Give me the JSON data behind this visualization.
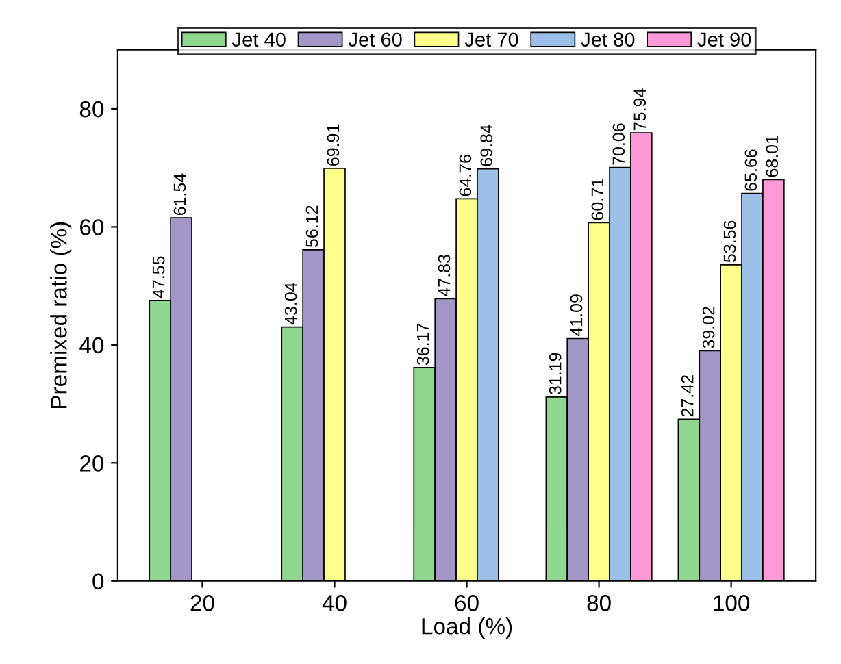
{
  "chart_data": {
    "type": "bar",
    "xlabel": "Load (%)",
    "ylabel": "Premixed ratio (%)",
    "categories": [
      "20",
      "40",
      "60",
      "80",
      "100"
    ],
    "series": [
      {
        "name": "Jet 40",
        "color": "#90d890",
        "values": [
          47.55,
          43.04,
          36.17,
          31.19,
          27.42
        ]
      },
      {
        "name": "Jet 60",
        "color": "#a397c8",
        "values": [
          61.54,
          56.12,
          47.83,
          41.09,
          39.02
        ]
      },
      {
        "name": "Jet 70",
        "color": "#ffff8c",
        "values": [
          null,
          69.91,
          64.76,
          60.71,
          53.56
        ]
      },
      {
        "name": "Jet 80",
        "color": "#9cc0e8",
        "values": [
          null,
          null,
          69.84,
          70.06,
          65.66
        ]
      },
      {
        "name": "Jet 90",
        "color": "#ff99d8",
        "values": [
          null,
          null,
          null,
          75.94,
          68.01
        ]
      }
    ],
    "ylim": [
      0,
      90
    ],
    "yticks": [
      0,
      20,
      40,
      60,
      80
    ],
    "data_labels": true,
    "legend": "top",
    "grid": false
  }
}
